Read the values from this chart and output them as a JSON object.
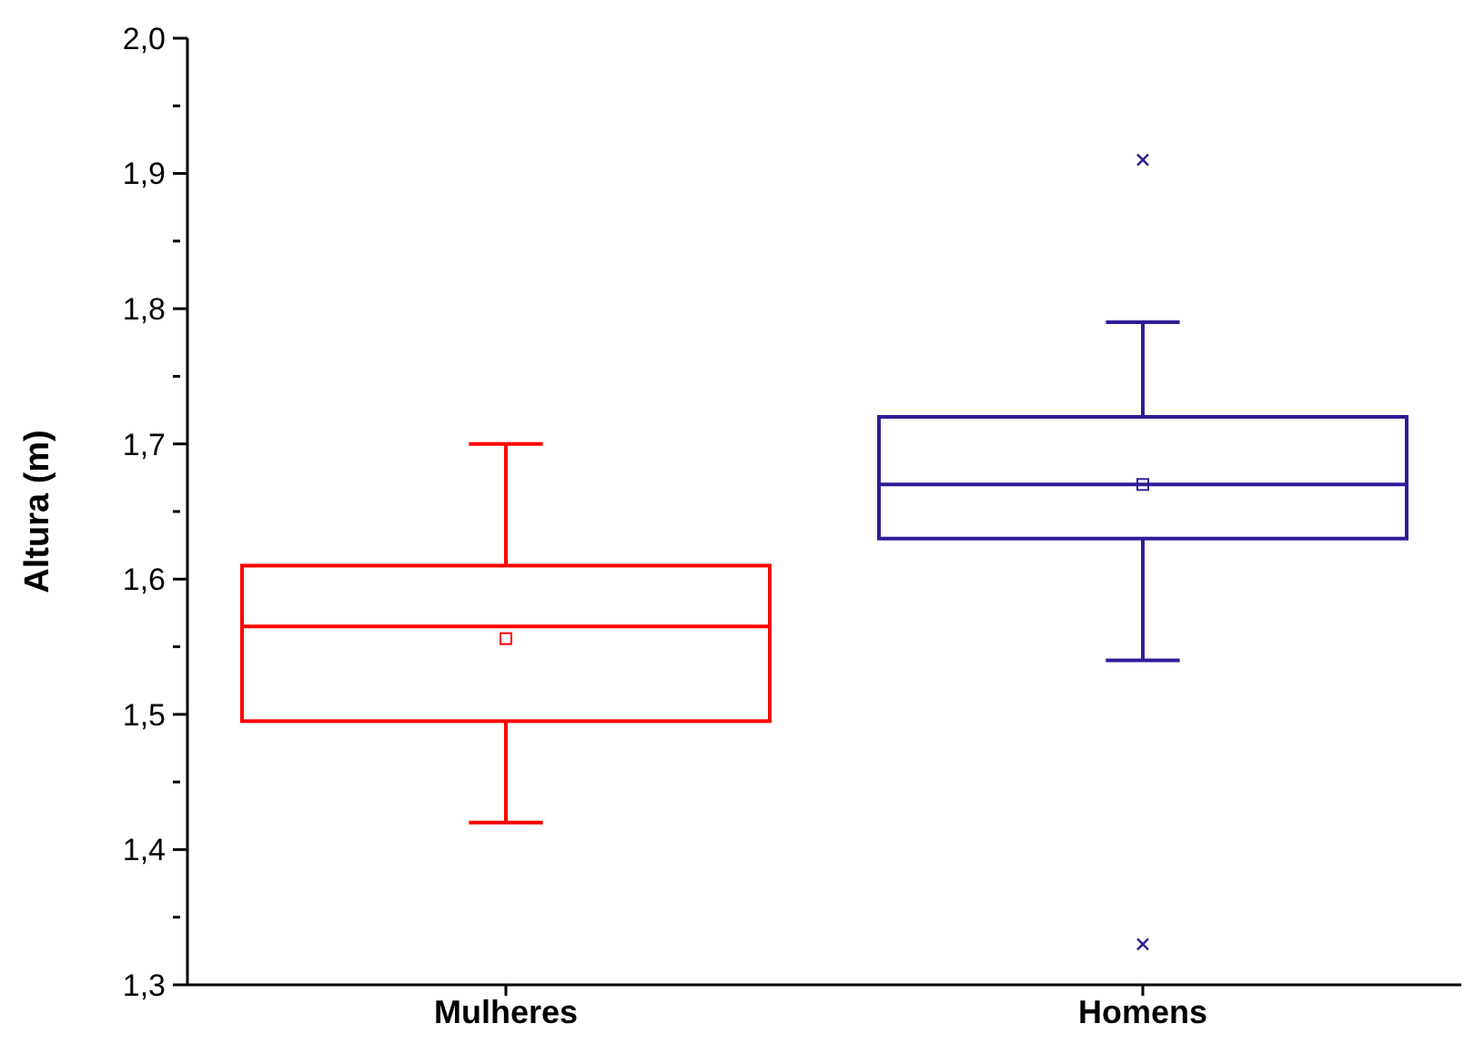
{
  "chart_data": {
    "type": "box",
    "ylabel": "Altura (m)",
    "categories": [
      "Mulheres",
      "Homens"
    ],
    "colors": [
      "#ff0000",
      "#2e1d9a"
    ],
    "boxes": [
      {
        "low": 1.42,
        "q1": 1.495,
        "median": 1.565,
        "q3": 1.61,
        "high": 1.7,
        "mean": 1.556
      },
      {
        "low": 1.54,
        "q1": 1.63,
        "median": 1.67,
        "q3": 1.72,
        "high": 1.79,
        "mean": 1.67,
        "outliers": [
          1.91,
          1.33
        ]
      }
    ],
    "ylim": [
      1.3,
      2.0
    ],
    "yticks": [
      {
        "value": 1.3,
        "label": "1,3"
      },
      {
        "value": 1.35,
        "label": null
      },
      {
        "value": 1.4,
        "label": "1,4"
      },
      {
        "value": 1.45,
        "label": null
      },
      {
        "value": 1.5,
        "label": "1,5"
      },
      {
        "value": 1.55,
        "label": null
      },
      {
        "value": 1.6,
        "label": "1,6"
      },
      {
        "value": 1.65,
        "label": null
      },
      {
        "value": 1.7,
        "label": "1,7"
      },
      {
        "value": 1.75,
        "label": null
      },
      {
        "value": 1.8,
        "label": "1,8"
      },
      {
        "value": 1.85,
        "label": null
      },
      {
        "value": 1.9,
        "label": "1,9"
      },
      {
        "value": 1.95,
        "label": null
      },
      {
        "value": 2.0,
        "label": "2,0"
      }
    ]
  }
}
